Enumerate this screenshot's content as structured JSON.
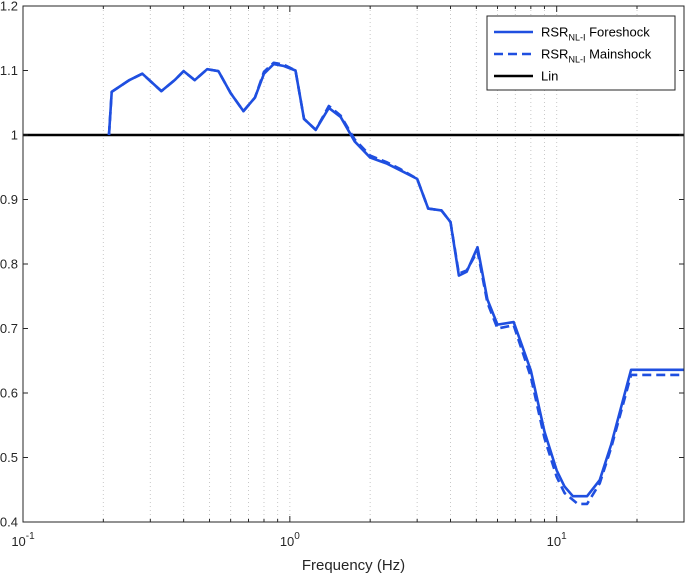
{
  "chart_data": {
    "type": "line",
    "title": "",
    "xlabel": "Frequency (Hz)",
    "ylabel": "",
    "xscale": "log",
    "xlim": [
      0.1,
      30
    ],
    "ylim": [
      0.4,
      1.2
    ],
    "grid": "x-dotted",
    "legend_position": "top-right",
    "x_ticks": [
      {
        "value": 0.1,
        "base": "10",
        "exp": "-1"
      },
      {
        "value": 1,
        "base": "10",
        "exp": "0"
      },
      {
        "value": 10,
        "base": "10",
        "exp": "1"
      }
    ],
    "y_ticks": [
      {
        "value": 0.4,
        "label": "0.4"
      },
      {
        "value": 0.5,
        "label": "0.5"
      },
      {
        "value": 0.6,
        "label": "0.6"
      },
      {
        "value": 0.7,
        "label": "0.7"
      },
      {
        "value": 0.8,
        "label": "0.8"
      },
      {
        "value": 0.9,
        "label": "0.9"
      },
      {
        "value": 1.0,
        "label": "1"
      },
      {
        "value": 1.1,
        "label": "1.1"
      },
      {
        "value": 1.2,
        "label": "1.2"
      }
    ],
    "series": [
      {
        "name": "Foreshock",
        "legend_main": "RSR",
        "legend_sub": "NL-I",
        "legend_rest": " Foreshock",
        "color": "#1f4fe0",
        "style": "solid",
        "points": [
          [
            0.21,
            1.0
          ],
          [
            0.215,
            1.067
          ],
          [
            0.23,
            1.075
          ],
          [
            0.25,
            1.085
          ],
          [
            0.28,
            1.095
          ],
          [
            0.33,
            1.068
          ],
          [
            0.37,
            1.085
          ],
          [
            0.4,
            1.099
          ],
          [
            0.44,
            1.085
          ],
          [
            0.49,
            1.102
          ],
          [
            0.54,
            1.099
          ],
          [
            0.6,
            1.065
          ],
          [
            0.67,
            1.037
          ],
          [
            0.74,
            1.058
          ],
          [
            0.8,
            1.095
          ],
          [
            0.87,
            1.11
          ],
          [
            0.95,
            1.107
          ],
          [
            1.05,
            1.1
          ],
          [
            1.13,
            1.025
          ],
          [
            1.25,
            1.008
          ],
          [
            1.4,
            1.042
          ],
          [
            1.55,
            1.028
          ],
          [
            1.75,
            0.99
          ],
          [
            2.0,
            0.965
          ],
          [
            2.3,
            0.956
          ],
          [
            2.6,
            0.945
          ],
          [
            3.0,
            0.932
          ],
          [
            3.3,
            0.886
          ],
          [
            3.7,
            0.883
          ],
          [
            4.0,
            0.865
          ],
          [
            4.3,
            0.782
          ],
          [
            4.6,
            0.788
          ],
          [
            5.05,
            0.826
          ],
          [
            5.5,
            0.745
          ],
          [
            6.0,
            0.706
          ],
          [
            6.9,
            0.71
          ],
          [
            8.0,
            0.635
          ],
          [
            9.0,
            0.54
          ],
          [
            10.0,
            0.48
          ],
          [
            10.7,
            0.455
          ],
          [
            11.5,
            0.44
          ],
          [
            13.0,
            0.44
          ],
          [
            14.5,
            0.465
          ],
          [
            16.0,
            0.52
          ],
          [
            19.0,
            0.636
          ],
          [
            30.0,
            0.636
          ]
        ]
      },
      {
        "name": "Mainshock",
        "legend_main": "RSR",
        "legend_sub": "NL-I",
        "legend_rest": " Mainshock",
        "color": "#1f4fe0",
        "style": "dashed",
        "points": [
          [
            0.21,
            1.0
          ],
          [
            0.215,
            1.067
          ],
          [
            0.23,
            1.075
          ],
          [
            0.25,
            1.085
          ],
          [
            0.28,
            1.095
          ],
          [
            0.33,
            1.068
          ],
          [
            0.37,
            1.085
          ],
          [
            0.4,
            1.099
          ],
          [
            0.44,
            1.085
          ],
          [
            0.49,
            1.102
          ],
          [
            0.54,
            1.099
          ],
          [
            0.6,
            1.065
          ],
          [
            0.67,
            1.037
          ],
          [
            0.74,
            1.058
          ],
          [
            0.8,
            1.098
          ],
          [
            0.87,
            1.112
          ],
          [
            0.95,
            1.109
          ],
          [
            1.05,
            1.1
          ],
          [
            1.13,
            1.025
          ],
          [
            1.25,
            1.008
          ],
          [
            1.4,
            1.045
          ],
          [
            1.55,
            1.03
          ],
          [
            1.75,
            0.993
          ],
          [
            2.0,
            0.968
          ],
          [
            2.3,
            0.958
          ],
          [
            2.6,
            0.947
          ],
          [
            3.0,
            0.932
          ],
          [
            3.3,
            0.886
          ],
          [
            3.7,
            0.883
          ],
          [
            4.0,
            0.865
          ],
          [
            4.3,
            0.785
          ],
          [
            4.6,
            0.79
          ],
          [
            5.05,
            0.82
          ],
          [
            5.5,
            0.74
          ],
          [
            6.0,
            0.7
          ],
          [
            6.9,
            0.705
          ],
          [
            8.0,
            0.625
          ],
          [
            9.0,
            0.53
          ],
          [
            10.0,
            0.47
          ],
          [
            10.7,
            0.445
          ],
          [
            12.0,
            0.428
          ],
          [
            13.0,
            0.428
          ],
          [
            14.5,
            0.46
          ],
          [
            16.0,
            0.515
          ],
          [
            19.0,
            0.628
          ],
          [
            30.0,
            0.628
          ]
        ]
      },
      {
        "name": "Lin",
        "legend_main": "Lin",
        "legend_sub": "",
        "legend_rest": "",
        "color": "#000000",
        "style": "solid",
        "points": [
          [
            0.1,
            1.0
          ],
          [
            30.0,
            1.0
          ]
        ]
      }
    ]
  }
}
